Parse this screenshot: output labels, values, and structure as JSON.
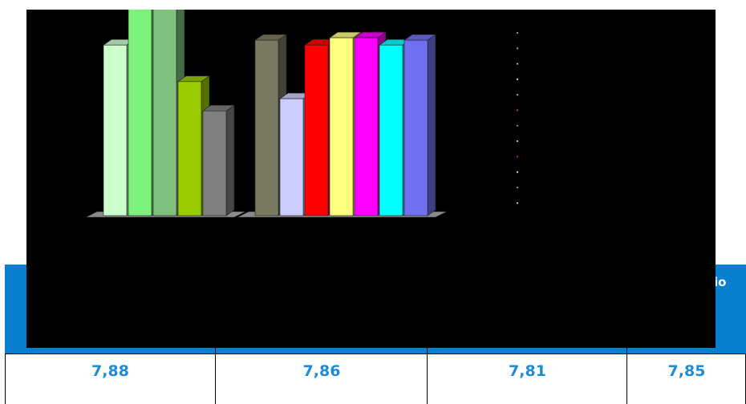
{
  "chart_data": {
    "type": "bar",
    "style": "3d-clustered-column",
    "background": "#000000",
    "grid": false,
    "legend": "right (entries not legible)",
    "groups": [
      {
        "values": [
          7.7,
          8.0,
          7.92,
          7.55,
          7.43
        ],
        "colors": [
          "#ccffcc",
          "#7cf27c",
          "#7fc07f",
          "#99cc00",
          "#808080"
        ]
      },
      {
        "values": [
          7.72,
          7.48,
          7.7,
          7.73,
          7.73,
          7.7,
          7.72
        ],
        "colors": [
          "#7a7a60",
          "#ccccff",
          "#ff0000",
          "#ffff80",
          "#ff00ff",
          "#00ffff",
          "#7070f0"
        ]
      }
    ],
    "legend_marker_colors": [
      "#9a9a70",
      "#6fb06f",
      "#b0c040",
      "#d0d0a0",
      "#a0a0a0",
      "#c04040",
      "#808080",
      "#c0c0c0",
      "#c000c0",
      "#d0d0d0",
      "#30c030",
      "#c0c0c0"
    ]
  },
  "table": {
    "header_fragment": "io",
    "header_color": "#0a7fcf",
    "value_color": "#1f8ad6",
    "values": [
      "7,88",
      "7,86",
      "7,81",
      "7,85"
    ]
  }
}
